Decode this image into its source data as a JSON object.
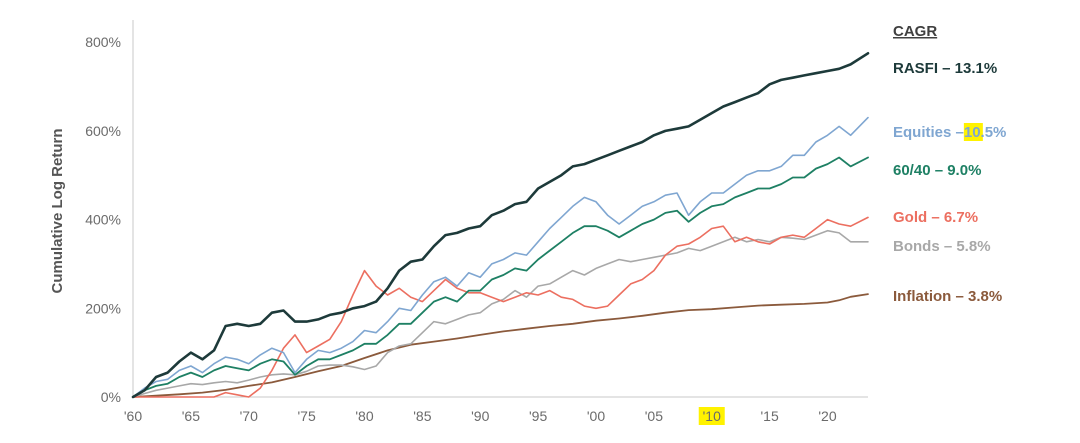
{
  "chart_data": {
    "type": "line",
    "xlabel": "",
    "ylabel": "Cumulative Log Return",
    "xlim": [
      1960,
      2023.5
    ],
    "ylim": [
      0,
      850
    ],
    "x_ticks": [
      "'60",
      "'65",
      "'70",
      "'75",
      "'80",
      "'85",
      "'90",
      "'95",
      "'00",
      "'05",
      "'10",
      "'15",
      "'20"
    ],
    "x_tick_values": [
      1960,
      1965,
      1970,
      1975,
      1980,
      1985,
      1990,
      1995,
      2000,
      2005,
      2010,
      2015,
      2020
    ],
    "y_ticks": [
      "0%",
      "200%",
      "400%",
      "600%",
      "800%"
    ],
    "y_tick_values": [
      0,
      200,
      400,
      600,
      800
    ],
    "highlight_tick": "'10",
    "highlight_color": "#fff200",
    "legend_title": "CAGR",
    "grid": false,
    "series": [
      {
        "name": "RASFI – 13.1%",
        "label_prefix": "RASFI – 13.1%",
        "label_hl": "",
        "label_suffix": "",
        "color": "#1d3a3a",
        "x": [
          1960,
          1961,
          1962,
          1963,
          1964,
          1965,
          1966,
          1967,
          1968,
          1969,
          1970,
          1971,
          1972,
          1973,
          1974,
          1975,
          1976,
          1977,
          1978,
          1979,
          1980,
          1981,
          1982,
          1983,
          1984,
          1985,
          1986,
          1987,
          1988,
          1989,
          1990,
          1991,
          1992,
          1993,
          1994,
          1995,
          1996,
          1997,
          1998,
          1999,
          2000,
          2001,
          2002,
          2003,
          2004,
          2005,
          2006,
          2007,
          2008,
          2009,
          2010,
          2011,
          2012,
          2013,
          2014,
          2015,
          2016,
          2017,
          2018,
          2019,
          2020,
          2021,
          2022,
          2023.5
        ],
        "values": [
          0,
          15,
          45,
          55,
          80,
          100,
          85,
          105,
          160,
          165,
          160,
          165,
          190,
          195,
          170,
          170,
          175,
          185,
          190,
          200,
          205,
          215,
          245,
          285,
          305,
          310,
          340,
          365,
          370,
          380,
          385,
          410,
          420,
          435,
          440,
          470,
          485,
          500,
          520,
          525,
          535,
          545,
          555,
          565,
          575,
          590,
          600,
          605,
          610,
          625,
          640,
          655,
          665,
          675,
          685,
          705,
          715,
          720,
          725,
          730,
          735,
          740,
          750,
          775
        ]
      },
      {
        "name": "Equities – 10.5%",
        "label_prefix": "Equities – ",
        "label_hl": "10",
        "label_suffix": ".5%",
        "color": "#7fa6d1",
        "x": [
          1960,
          1961,
          1962,
          1963,
          1964,
          1965,
          1966,
          1967,
          1968,
          1969,
          1970,
          1971,
          1972,
          1973,
          1974,
          1975,
          1976,
          1977,
          1978,
          1979,
          1980,
          1981,
          1982,
          1983,
          1984,
          1985,
          1986,
          1987,
          1988,
          1989,
          1990,
          1991,
          1992,
          1993,
          1994,
          1995,
          1996,
          1997,
          1998,
          1999,
          2000,
          2001,
          2002,
          2003,
          2004,
          2005,
          2006,
          2007,
          2008,
          2009,
          2010,
          2011,
          2012,
          2013,
          2014,
          2015,
          2016,
          2017,
          2018,
          2019,
          2020,
          2021,
          2022,
          2023.5
        ],
        "values": [
          0,
          20,
          35,
          40,
          60,
          70,
          55,
          75,
          90,
          85,
          75,
          95,
          110,
          100,
          55,
          85,
          105,
          100,
          110,
          125,
          150,
          145,
          170,
          200,
          195,
          230,
          260,
          270,
          250,
          280,
          270,
          300,
          310,
          325,
          320,
          350,
          380,
          405,
          430,
          450,
          440,
          410,
          390,
          410,
          430,
          440,
          455,
          460,
          410,
          440,
          460,
          460,
          480,
          500,
          510,
          510,
          520,
          545,
          545,
          575,
          590,
          610,
          590,
          630
        ]
      },
      {
        "name": "60/40 – 9.0%",
        "label_prefix": "60/40 – 9.0%",
        "label_hl": "",
        "label_suffix": "",
        "color": "#1e8064",
        "x": [
          1960,
          1961,
          1962,
          1963,
          1964,
          1965,
          1966,
          1967,
          1968,
          1969,
          1970,
          1971,
          1972,
          1973,
          1974,
          1975,
          1976,
          1977,
          1978,
          1979,
          1980,
          1981,
          1982,
          1983,
          1984,
          1985,
          1986,
          1987,
          1988,
          1989,
          1990,
          1991,
          1992,
          1993,
          1994,
          1995,
          1996,
          1997,
          1998,
          1999,
          2000,
          2001,
          2002,
          2003,
          2004,
          2005,
          2006,
          2007,
          2008,
          2009,
          2010,
          2011,
          2012,
          2013,
          2014,
          2015,
          2016,
          2017,
          2018,
          2019,
          2020,
          2021,
          2022,
          2023.5
        ],
        "values": [
          0,
          15,
          25,
          30,
          45,
          55,
          45,
          60,
          70,
          65,
          60,
          75,
          85,
          80,
          50,
          70,
          85,
          85,
          95,
          105,
          120,
          120,
          140,
          165,
          165,
          190,
          215,
          225,
          215,
          240,
          240,
          265,
          275,
          290,
          285,
          310,
          330,
          350,
          370,
          385,
          385,
          375,
          360,
          375,
          390,
          400,
          415,
          420,
          395,
          415,
          430,
          435,
          450,
          460,
          470,
          470,
          480,
          495,
          495,
          515,
          525,
          540,
          520,
          540
        ]
      },
      {
        "name": "Gold – 6.7%",
        "label_prefix": "Gold – 6.7%",
        "label_hl": "",
        "label_suffix": "",
        "color": "#ec6f60",
        "x": [
          1960,
          1961,
          1962,
          1963,
          1964,
          1965,
          1966,
          1967,
          1968,
          1969,
          1970,
          1971,
          1972,
          1973,
          1974,
          1975,
          1976,
          1977,
          1978,
          1979,
          1980,
          1981,
          1982,
          1983,
          1984,
          1985,
          1986,
          1987,
          1988,
          1989,
          1990,
          1991,
          1992,
          1993,
          1994,
          1995,
          1996,
          1997,
          1998,
          1999,
          2000,
          2001,
          2002,
          2003,
          2004,
          2005,
          2006,
          2007,
          2008,
          2009,
          2010,
          2011,
          2012,
          2013,
          2014,
          2015,
          2016,
          2017,
          2018,
          2019,
          2020,
          2021,
          2022,
          2023.5
        ],
        "values": [
          0,
          0,
          0,
          0,
          0,
          0,
          0,
          0,
          10,
          5,
          -5,
          20,
          60,
          110,
          140,
          100,
          115,
          130,
          170,
          230,
          285,
          250,
          230,
          245,
          225,
          215,
          240,
          265,
          245,
          235,
          235,
          225,
          215,
          225,
          235,
          230,
          240,
          225,
          220,
          205,
          200,
          205,
          230,
          255,
          265,
          285,
          320,
          340,
          345,
          360,
          380,
          385,
          350,
          360,
          350,
          345,
          360,
          365,
          360,
          380,
          400,
          390,
          385,
          405
        ]
      },
      {
        "name": "Bonds – 5.8%",
        "label_prefix": "Bonds – 5.8%",
        "label_hl": "",
        "label_suffix": "",
        "color": "#a8a8a8",
        "x": [
          1960,
          1961,
          1962,
          1963,
          1964,
          1965,
          1966,
          1967,
          1968,
          1969,
          1970,
          1971,
          1972,
          1973,
          1974,
          1975,
          1976,
          1977,
          1978,
          1979,
          1980,
          1981,
          1982,
          1983,
          1984,
          1985,
          1986,
          1987,
          1988,
          1989,
          1990,
          1991,
          1992,
          1993,
          1994,
          1995,
          1996,
          1997,
          1998,
          1999,
          2000,
          2001,
          2002,
          2003,
          2004,
          2005,
          2006,
          2007,
          2008,
          2009,
          2010,
          2011,
          2012,
          2013,
          2014,
          2015,
          2016,
          2017,
          2018,
          2019,
          2020,
          2021,
          2022,
          2023.5
        ],
        "values": [
          0,
          8,
          15,
          20,
          25,
          30,
          28,
          32,
          35,
          32,
          38,
          45,
          50,
          52,
          50,
          58,
          70,
          72,
          72,
          68,
          62,
          70,
          100,
          115,
          120,
          145,
          170,
          165,
          175,
          185,
          190,
          210,
          220,
          240,
          225,
          250,
          255,
          270,
          285,
          275,
          290,
          300,
          310,
          305,
          310,
          315,
          320,
          325,
          335,
          330,
          340,
          350,
          360,
          350,
          355,
          350,
          360,
          358,
          355,
          365,
          375,
          370,
          350,
          350
        ]
      },
      {
        "name": "Inflation – 3.8%",
        "label_prefix": "Inflation – 3.8%",
        "label_hl": "",
        "label_suffix": "",
        "color": "#8b5a3c",
        "x": [
          1960,
          1962,
          1964,
          1966,
          1968,
          1970,
          1972,
          1974,
          1976,
          1978,
          1980,
          1982,
          1984,
          1986,
          1988,
          1990,
          1992,
          1994,
          1996,
          1998,
          2000,
          2002,
          2004,
          2006,
          2008,
          2010,
          2012,
          2014,
          2016,
          2018,
          2020,
          2021,
          2022,
          2023.5
        ],
        "values": [
          0,
          3,
          6,
          10,
          16,
          25,
          33,
          45,
          58,
          70,
          88,
          105,
          118,
          125,
          132,
          140,
          148,
          154,
          160,
          165,
          172,
          177,
          183,
          190,
          196,
          198,
          202,
          206,
          208,
          210,
          213,
          218,
          226,
          232
        ]
      }
    ]
  }
}
